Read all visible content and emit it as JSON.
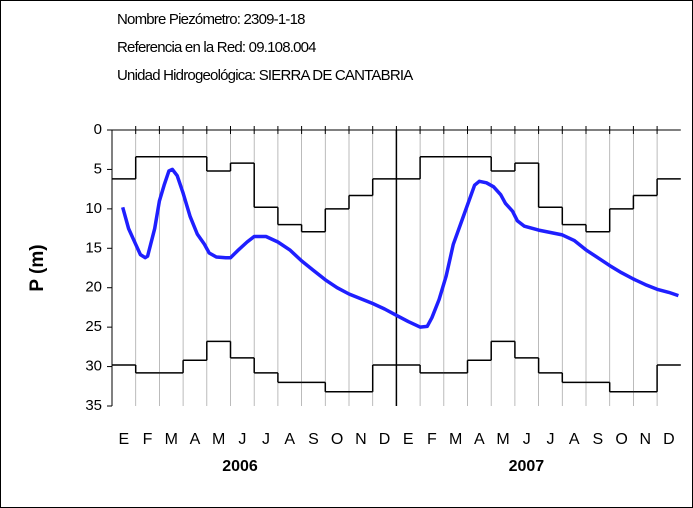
{
  "chart_data": {
    "type": "line",
    "title_lines": [
      "Nombre Piezómetro:  2309-1-18",
      "Referencia en la Red:  09.108.004",
      "Unidad Hidrogeológica: SIERRA DE CANTABRIA"
    ],
    "y_label": "P (m)",
    "categories": [
      "E",
      "F",
      "M",
      "A",
      "M",
      "J",
      "J",
      "A",
      "S",
      "O",
      "N",
      "D",
      "E",
      "F",
      "M",
      "A",
      "M",
      "J",
      "J",
      "A",
      "S",
      "O",
      "N",
      "D"
    ],
    "years": [
      "2006",
      "2007"
    ],
    "ylim": [
      35,
      0
    ],
    "yticks": [
      0,
      5,
      10,
      15,
      20,
      25,
      30,
      35
    ],
    "xlim": [
      0,
      24
    ],
    "inverted_y": true,
    "series": [
      {
        "color": "#000000",
        "step": true,
        "values": [
          6.2,
          3.4,
          3.4,
          3.4,
          5.2,
          4.2,
          9.8,
          12,
          12.9,
          10,
          8.3,
          6.2,
          6.2,
          3.4,
          3.4,
          3.4,
          5.2,
          4.2,
          9.8,
          12,
          12.9,
          10,
          8.3,
          6.2
        ]
      },
      {
        "color": "#000000",
        "step": true,
        "values": [
          29.8,
          30.8,
          30.8,
          29.2,
          26.8,
          28.9,
          30.8,
          32,
          32,
          33.2,
          33.2,
          29.8,
          29.8,
          30.8,
          30.8,
          29.2,
          26.8,
          28.9,
          30.8,
          32,
          32,
          33.2,
          33.2,
          29.8
        ]
      },
      {
        "color": "#1f1fff",
        "x": [
          0.45,
          0.7,
          1.0,
          1.2,
          1.4,
          1.5,
          1.8,
          2.0,
          2.2,
          2.4,
          2.55,
          2.75,
          3.0,
          3.3,
          3.6,
          3.9,
          4.1,
          4.4,
          4.8,
          5.0,
          5.3,
          5.7,
          6.0,
          6.5,
          7.0,
          7.5,
          8.0,
          8.5,
          9.0,
          9.5,
          10.0,
          11.0,
          11.5,
          12.0,
          12.5,
          13.0,
          13.3,
          13.5,
          13.8,
          14.1,
          14.4,
          14.7,
          15.0,
          15.3,
          15.5,
          15.8,
          16.1,
          16.4,
          16.6,
          16.9,
          17.1,
          17.4,
          18.0,
          19.0,
          19.5,
          20.0,
          20.5,
          21.0,
          21.5,
          22.0,
          22.5,
          23.0,
          23.5,
          23.9
        ],
        "values": [
          9.8,
          12.5,
          14.5,
          15.8,
          16.2,
          16.0,
          12.5,
          9,
          7,
          5.2,
          5.0,
          5.8,
          8,
          11,
          13.2,
          14.5,
          15.6,
          16.1,
          16.2,
          16.2,
          15.3,
          14.2,
          13.5,
          13.5,
          14.2,
          15.2,
          16.6,
          17.8,
          19,
          20,
          20.8,
          22,
          22.7,
          23.5,
          24.3,
          25.0,
          24.9,
          23.8,
          21.5,
          18.5,
          14.5,
          12,
          9.5,
          7,
          6.5,
          6.7,
          7.2,
          8.2,
          9.3,
          10.3,
          11.5,
          12.2,
          12.7,
          13.3,
          14,
          15.2,
          16.2,
          17.2,
          18.1,
          18.9,
          19.6,
          20.2,
          20.6,
          21.0
        ]
      }
    ]
  }
}
